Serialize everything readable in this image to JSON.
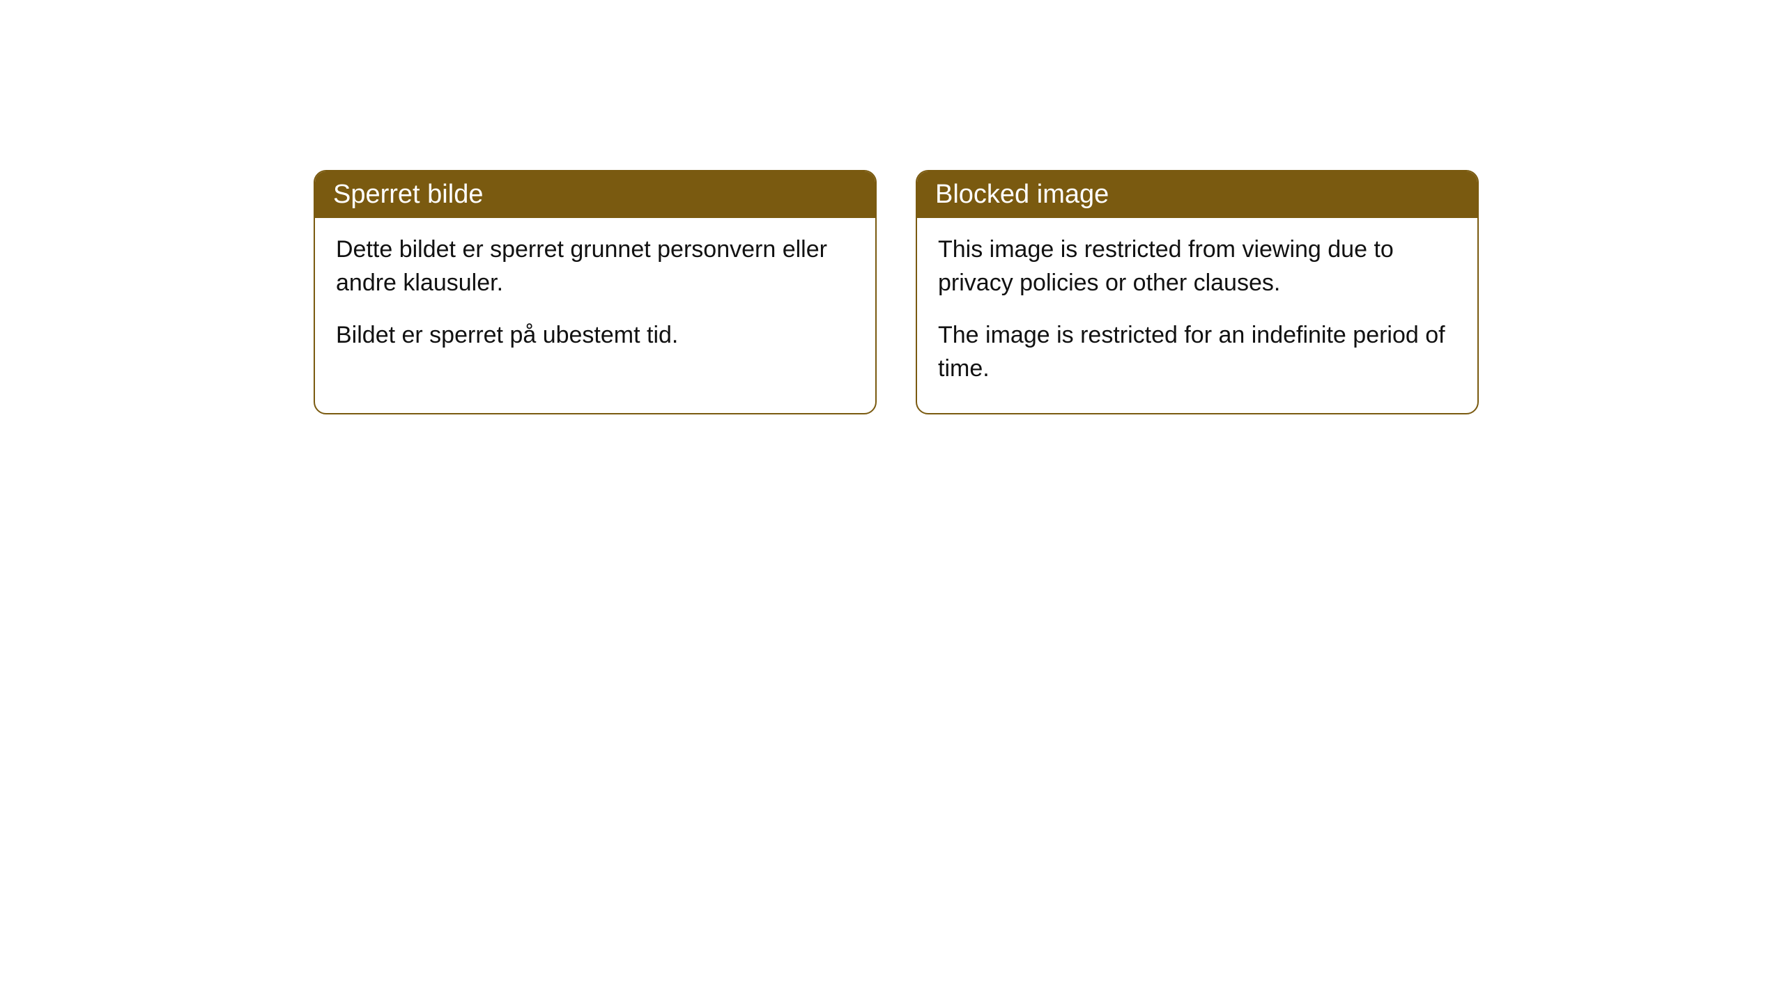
{
  "cards": [
    {
      "title": "Sperret bilde",
      "paragraph1": "Dette bildet er sperret grunnet personvern eller andre klausuler.",
      "paragraph2": "Bildet er sperret på ubestemt tid."
    },
    {
      "title": "Blocked image",
      "paragraph1": "This image is restricted from viewing due to privacy policies or other clauses.",
      "paragraph2": "The image is restricted for an indefinite period of time."
    }
  ],
  "styling": {
    "header_background": "#7a5a10",
    "header_text_color": "#ffffff",
    "border_color": "#7a5a10",
    "body_background": "#ffffff",
    "body_text_color": "#111111",
    "border_radius": 18,
    "header_fontsize": 38,
    "body_fontsize": 34
  }
}
